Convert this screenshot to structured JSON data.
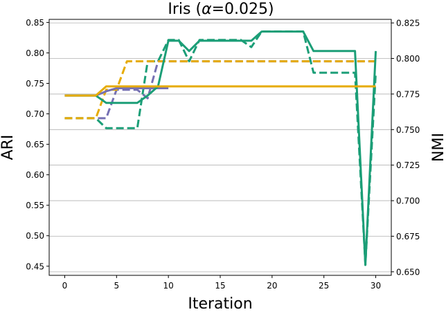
{
  "chart_data": {
    "type": "line",
    "title": "Iris (α=0.025)",
    "title_prefix": "Iris (",
    "title_alpha": "α",
    "title_suffix": "=0.025)",
    "xlabel": "Iteration",
    "ylabel_left": "ARI",
    "ylabel_right": "NMI",
    "xlim": [
      -1.5,
      31.5
    ],
    "ylim_left": [
      0.435,
      0.855
    ],
    "ylim_right": [
      0.6475,
      0.8275
    ],
    "xticks": [
      0,
      5,
      10,
      15,
      20,
      25,
      30
    ],
    "yticks_left": [
      0.45,
      0.5,
      0.55,
      0.6,
      0.65,
      0.7,
      0.75,
      0.8,
      0.85
    ],
    "yticks_right": [
      0.65,
      0.675,
      0.7,
      0.725,
      0.75,
      0.775,
      0.8,
      0.825
    ],
    "ytick_labels_left": [
      "0.45",
      "0.50",
      "0.55",
      "0.60",
      "0.65",
      "0.70",
      "0.75",
      "0.80",
      "0.85"
    ],
    "ytick_labels_right": [
      "0.650",
      "0.675",
      "0.700",
      "0.725",
      "0.750",
      "0.775",
      "0.800",
      "0.825"
    ],
    "grid": "horizontal, right axis",
    "legend": "none",
    "series": [
      {
        "axis": "left",
        "style": "solid",
        "color": "#e6ab02",
        "x": [
          0,
          1,
          2,
          3,
          4,
          5,
          6,
          7,
          8,
          9,
          10,
          11,
          12,
          13,
          14,
          15,
          16,
          17,
          18,
          19,
          20,
          21,
          22,
          23,
          24,
          25,
          26,
          27,
          28,
          29,
          30
        ],
        "y": [
          0.73,
          0.73,
          0.73,
          0.73,
          0.745,
          0.745,
          0.745,
          0.745,
          0.745,
          0.745,
          0.745,
          0.745,
          0.745,
          0.745,
          0.745,
          0.745,
          0.745,
          0.745,
          0.745,
          0.745,
          0.745,
          0.745,
          0.745,
          0.745,
          0.745,
          0.745,
          0.745,
          0.745,
          0.745,
          0.745,
          0.745
        ]
      },
      {
        "axis": "left",
        "style": "solid",
        "color": "#7570b3",
        "x": [
          0,
          1,
          2,
          3,
          4,
          5,
          6,
          7,
          8,
          9,
          10
        ],
        "y": [
          0.73,
          0.73,
          0.73,
          0.73,
          0.737,
          0.742,
          0.742,
          0.742,
          0.742,
          0.742,
          0.742
        ]
      },
      {
        "axis": "left",
        "style": "solid",
        "color": "#1b9e77",
        "x": [
          0,
          1,
          2,
          3,
          4,
          5,
          6,
          7,
          8,
          9,
          10,
          11,
          12,
          13,
          14,
          15,
          16,
          17,
          18,
          19,
          20,
          21,
          22,
          23,
          24,
          25,
          26,
          27,
          28,
          29,
          30
        ],
        "y": [
          0.73,
          0.73,
          0.73,
          0.73,
          0.718,
          0.718,
          0.718,
          0.718,
          0.73,
          0.745,
          0.82,
          0.82,
          0.803,
          0.82,
          0.82,
          0.82,
          0.82,
          0.82,
          0.82,
          0.835,
          0.835,
          0.835,
          0.835,
          0.835,
          0.803,
          0.803,
          0.803,
          0.803,
          0.803,
          0.452,
          0.803
        ]
      },
      {
        "axis": "right",
        "style": "dashed",
        "color": "#e6ab02",
        "x": [
          0,
          1,
          2,
          3,
          4,
          5,
          6,
          7,
          8,
          9,
          10,
          11,
          12,
          13,
          14,
          15,
          16,
          17,
          18,
          19,
          20,
          21,
          22,
          23,
          24,
          25,
          26,
          27,
          28,
          29,
          30
        ],
        "y": [
          0.758,
          0.758,
          0.758,
          0.758,
          0.778,
          0.778,
          0.798,
          0.798,
          0.798,
          0.798,
          0.798,
          0.798,
          0.798,
          0.798,
          0.798,
          0.798,
          0.798,
          0.798,
          0.798,
          0.798,
          0.798,
          0.798,
          0.798,
          0.798,
          0.798,
          0.798,
          0.798,
          0.798,
          0.798,
          0.798,
          0.798
        ]
      },
      {
        "axis": "right",
        "style": "dashed",
        "color": "#7570b3",
        "x": [
          0,
          1,
          2,
          3,
          4,
          5,
          6,
          7,
          8,
          9,
          10,
          11,
          12,
          13,
          14,
          15,
          16,
          17,
          18,
          19,
          20,
          21,
          22,
          23,
          24,
          25,
          26,
          27,
          28,
          29,
          30
        ],
        "y": [
          0.758,
          0.758,
          0.758,
          0.758,
          0.758,
          0.778,
          0.778,
          0.778,
          0.772,
          0.798,
          0.798,
          0.798,
          0.798,
          0.798,
          0.798,
          0.798,
          0.798,
          0.798,
          0.798,
          0.798,
          0.798,
          0.798,
          0.798,
          0.798,
          0.798,
          0.798,
          0.798,
          0.798,
          0.798,
          0.798,
          0.798
        ]
      },
      {
        "axis": "right",
        "style": "dashed",
        "color": "#1b9e77",
        "x": [
          0,
          1,
          2,
          3,
          4,
          5,
          6,
          7,
          8,
          9,
          10,
          11,
          12,
          13,
          14,
          15,
          16,
          17,
          18,
          19,
          20,
          21,
          22,
          23,
          24,
          25,
          26,
          27,
          28,
          29,
          30
        ],
        "y": [
          0.758,
          0.758,
          0.758,
          0.758,
          0.751,
          0.751,
          0.751,
          0.751,
          0.798,
          0.798,
          0.813,
          0.813,
          0.798,
          0.813,
          0.813,
          0.813,
          0.813,
          0.813,
          0.808,
          0.819,
          0.819,
          0.819,
          0.819,
          0.819,
          0.79,
          0.79,
          0.79,
          0.79,
          0.79,
          0.655,
          0.79
        ]
      }
    ]
  }
}
